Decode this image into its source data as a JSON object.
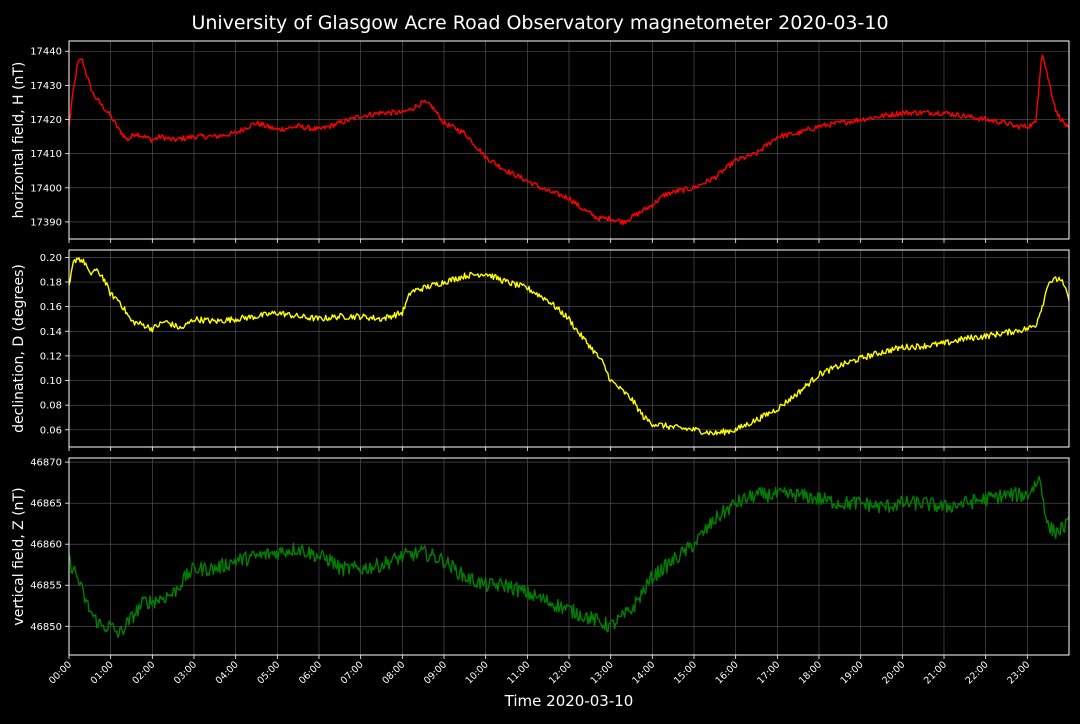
{
  "title": "University of Glasgow Acre Road Observatory magnetometer 2020-03-10",
  "xlabel": "Time 2020-03-10",
  "x_ticks": [
    "00:00",
    "01:00",
    "02:00",
    "03:00",
    "04:00",
    "05:00",
    "06:00",
    "07:00",
    "08:00",
    "09:00",
    "10:00",
    "11:00",
    "12:00",
    "13:00",
    "14:00",
    "15:00",
    "16:00",
    "17:00",
    "18:00",
    "19:00",
    "20:00",
    "21:00",
    "22:00",
    "23:00"
  ],
  "colors": {
    "background": "#000000",
    "grid": "#5a5a5a",
    "axes": "#ffffff",
    "H": "#ff0000",
    "D": "#ffff00",
    "Z": "#008000"
  },
  "chart_data": [
    {
      "type": "line",
      "ylabel": "horizontal field, H (nT)",
      "ylim": [
        17385,
        17443
      ],
      "yticks": [
        17390,
        17400,
        17410,
        17420,
        17430,
        17440
      ],
      "color": "#ff0000",
      "noise": 0.8,
      "series": [
        {
          "x": [
            0,
            0.1,
            0.2,
            0.3,
            0.5,
            0.6,
            0.8,
            1.0,
            1.2,
            1.4,
            1.6,
            1.8,
            2.0,
            2.2,
            2.5,
            3.0,
            3.5,
            4.0,
            4.3,
            4.5,
            5.0,
            5.5,
            6.0,
            6.5,
            7.0,
            7.5,
            8.0,
            8.2,
            8.5,
            8.7,
            9.0,
            9.5,
            10.0,
            10.5,
            11.0,
            11.5,
            12.0,
            12.3,
            12.7,
            13.0,
            13.3,
            13.6,
            14.0,
            14.3,
            14.6,
            15.0,
            15.5,
            16.0,
            16.5,
            17.0,
            17.5,
            18.0,
            18.5,
            19.0,
            19.5,
            20.0,
            20.5,
            21.0,
            21.5,
            22.0,
            22.5,
            22.7,
            23.0,
            23.2,
            23.35,
            23.5,
            23.7,
            24.0
          ],
          "y": [
            17418,
            17428,
            17436,
            17438,
            17430,
            17427,
            17424,
            17421,
            17417,
            17414,
            17416,
            17415,
            17414,
            17415,
            17414,
            17415,
            17415,
            17416,
            17418,
            17419,
            17417,
            17418,
            17417,
            17419,
            17421,
            17422,
            17422,
            17423,
            17425,
            17424,
            17419,
            17416,
            17409,
            17405,
            17402,
            17399,
            17397,
            17394,
            17391,
            17391,
            17390,
            17392,
            17395,
            17398,
            17399,
            17400,
            17403,
            17408,
            17410,
            17415,
            17416,
            17418,
            17419,
            17420,
            17421,
            17422,
            17422,
            17422,
            17421,
            17420,
            17419,
            17418,
            17418,
            17419,
            17440,
            17432,
            17422,
            17417
          ]
        }
      ]
    },
    {
      "type": "line",
      "ylabel": "declination, D (degrees)",
      "ylim": [
        0.046,
        0.206
      ],
      "yticks": [
        0.06,
        0.08,
        0.1,
        0.12,
        0.14,
        0.16,
        0.18,
        0.2
      ],
      "color": "#ffff00",
      "noise": 0.0025,
      "series": [
        {
          "x": [
            0,
            0.1,
            0.2,
            0.4,
            0.5,
            0.6,
            0.8,
            1.0,
            1.2,
            1.5,
            1.8,
            2.0,
            2.3,
            2.7,
            3.0,
            3.5,
            4.0,
            4.5,
            5.0,
            5.5,
            6.0,
            6.5,
            7.0,
            7.5,
            8.0,
            8.2,
            8.5,
            9.0,
            9.5,
            10.0,
            10.5,
            11.0,
            11.5,
            12.0,
            12.2,
            12.5,
            12.8,
            13.0,
            13.5,
            13.8,
            14.0,
            14.5,
            15.0,
            15.5,
            16.0,
            16.5,
            17.0,
            17.5,
            18.0,
            18.5,
            19.0,
            19.5,
            20.0,
            20.5,
            21.0,
            21.5,
            22.0,
            22.5,
            23.0,
            23.2,
            23.4,
            23.5,
            23.8,
            24.0
          ],
          "y": [
            0.175,
            0.195,
            0.2,
            0.195,
            0.185,
            0.19,
            0.185,
            0.17,
            0.165,
            0.148,
            0.145,
            0.142,
            0.148,
            0.142,
            0.15,
            0.148,
            0.15,
            0.152,
            0.155,
            0.152,
            0.15,
            0.152,
            0.152,
            0.15,
            0.155,
            0.172,
            0.175,
            0.18,
            0.185,
            0.187,
            0.18,
            0.175,
            0.165,
            0.15,
            0.14,
            0.128,
            0.115,
            0.1,
            0.085,
            0.07,
            0.065,
            0.062,
            0.06,
            0.057,
            0.06,
            0.068,
            0.077,
            0.09,
            0.105,
            0.112,
            0.118,
            0.123,
            0.127,
            0.128,
            0.13,
            0.134,
            0.136,
            0.139,
            0.142,
            0.145,
            0.165,
            0.18,
            0.183,
            0.166
          ]
        }
      ]
    },
    {
      "type": "line",
      "ylabel": "vertical field, Z (nT)",
      "ylim": [
        46846.5,
        46870.5
      ],
      "yticks": [
        46850,
        46855,
        46860,
        46865,
        46870
      ],
      "color": "#008000",
      "noise": 0.9,
      "series": [
        {
          "x": [
            0,
            0.2,
            0.4,
            0.6,
            0.8,
            1.0,
            1.2,
            1.5,
            1.8,
            2.0,
            2.5,
            2.8,
            3.0,
            3.5,
            4.0,
            4.5,
            5.0,
            5.5,
            6.0,
            6.3,
            6.5,
            7.0,
            7.5,
            8.0,
            8.5,
            9.0,
            9.5,
            10.0,
            10.5,
            11.0,
            11.5,
            12.0,
            12.5,
            13.0,
            13.5,
            14.0,
            14.5,
            15.0,
            15.5,
            16.0,
            16.5,
            17.0,
            17.5,
            18.0,
            18.5,
            19.0,
            19.5,
            20.0,
            20.5,
            21.0,
            21.5,
            22.0,
            22.5,
            23.0,
            23.3,
            23.5,
            23.7,
            24.0
          ],
          "y": [
            46858,
            46856,
            46853,
            46851,
            46850,
            46850,
            46849,
            46851,
            46853,
            46853,
            46854,
            46856,
            46857,
            46857,
            46858,
            46858.5,
            46859,
            46859.5,
            46858.5,
            46858,
            46857,
            46857,
            46857.5,
            46858.5,
            46859,
            46858,
            46856,
            46855,
            46855,
            46854,
            46853,
            46852,
            46851,
            46850,
            46852,
            46856,
            46858,
            46860,
            46863,
            46865,
            46866,
            46866,
            46866,
            46865.5,
            46865,
            46865,
            46864.5,
            46865,
            46865,
            46864.5,
            46865,
            46865.5,
            46866,
            46866,
            46868,
            46862,
            46861.5,
            46862.5
          ]
        }
      ]
    }
  ]
}
